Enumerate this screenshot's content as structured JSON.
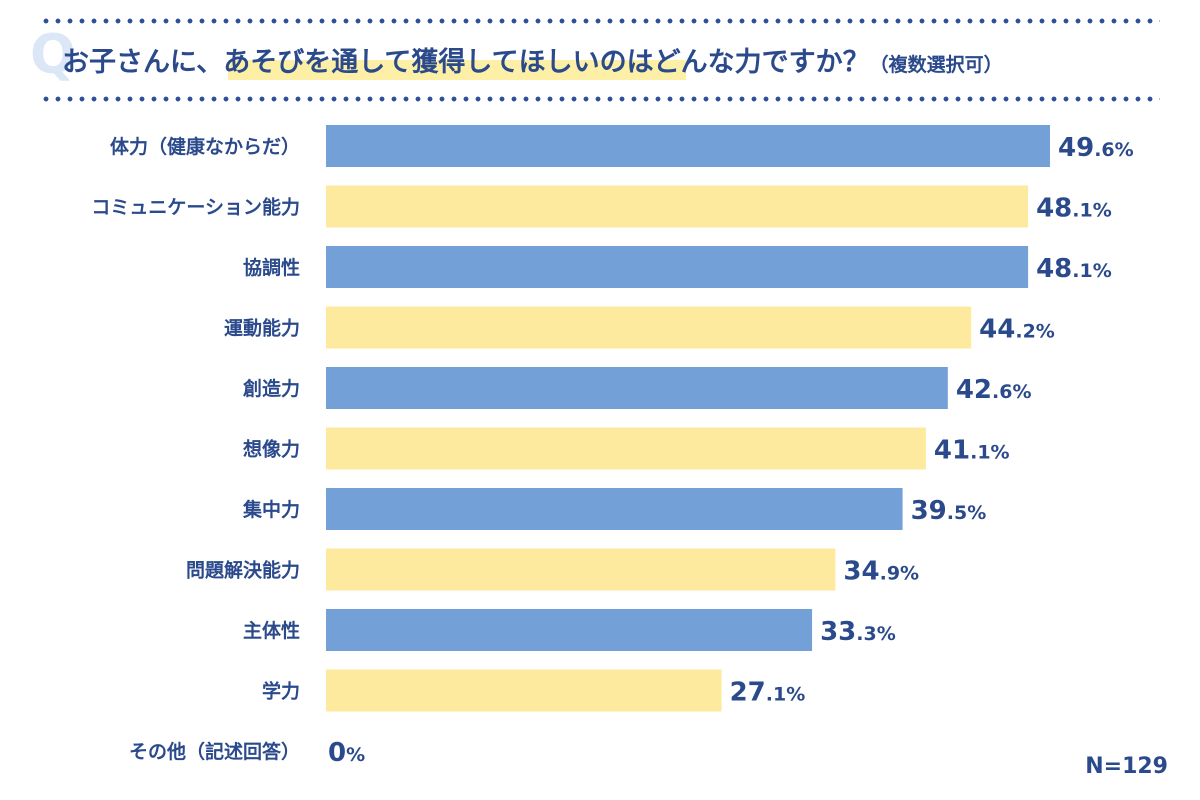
{
  "header": {
    "q_mark": "Q",
    "title": "お子さんに、あそびを通して獲得してほしいのはどんな力ですか？",
    "subtitle": "（複数選択可）"
  },
  "colors": {
    "bar_odd": "#74a0d8",
    "bar_even": "#fdea9f",
    "text": "#2b4a8c",
    "dots": "#2e4f9b"
  },
  "chart_data": {
    "type": "bar",
    "orientation": "horizontal",
    "categories": [
      "体力（健康なからだ）",
      "コミュニケーション能力",
      "協調性",
      "運動能力",
      "創造力",
      "想像力",
      "集中力",
      "問題解決能力",
      "主体性",
      "学力",
      "その他（記述回答）"
    ],
    "values": [
      49.6,
      48.1,
      48.1,
      44.2,
      42.6,
      41.1,
      39.5,
      34.9,
      33.3,
      27.1,
      0
    ],
    "value_labels": [
      {
        "int": "49",
        "dec": ".6",
        "unit": "%"
      },
      {
        "int": "48",
        "dec": ".1",
        "unit": "%"
      },
      {
        "int": "48",
        "dec": ".1",
        "unit": "%"
      },
      {
        "int": "44",
        "dec": ".2",
        "unit": "%"
      },
      {
        "int": "42",
        "dec": ".6",
        "unit": "%"
      },
      {
        "int": "41",
        "dec": ".1",
        "unit": "%"
      },
      {
        "int": "39",
        "dec": ".5",
        "unit": "%"
      },
      {
        "int": "34",
        "dec": ".9",
        "unit": "%"
      },
      {
        "int": "33",
        "dec": ".3",
        "unit": "%"
      },
      {
        "int": "27",
        "dec": ".1",
        "unit": "%"
      },
      {
        "int": "0",
        "dec": "",
        "unit": "%"
      }
    ],
    "xlim": [
      0,
      49.6
    ],
    "grid": false,
    "legend": "none"
  },
  "sample_size": "N=129"
}
